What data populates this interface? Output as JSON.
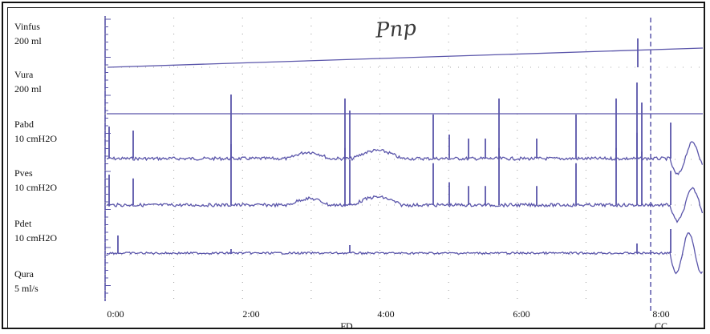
{
  "chart_data": {
    "type": "line",
    "title": "",
    "annotation": "Pnp",
    "channels": [
      {
        "name": "Vinfus",
        "scale": "200 ml"
      },
      {
        "name": "Vura",
        "scale": "200 ml"
      },
      {
        "name": "Pabd",
        "scale": "10 cmH2O"
      },
      {
        "name": "Pves",
        "scale": "10 cmH2O"
      },
      {
        "name": "Pdet",
        "scale": "10 cmH2O"
      },
      {
        "name": "Qura",
        "scale": "5 ml/s"
      }
    ],
    "x_ticks": [
      "0:00",
      "2:00",
      "4:00",
      "6:00",
      "8:00"
    ],
    "events": [
      {
        "label": "FD",
        "time_min": 4.0
      },
      {
        "label": "CC",
        "time_min": 8.0
      }
    ],
    "xlim_min": [
      0,
      8.7
    ],
    "line_color": "#5a55aa"
  }
}
